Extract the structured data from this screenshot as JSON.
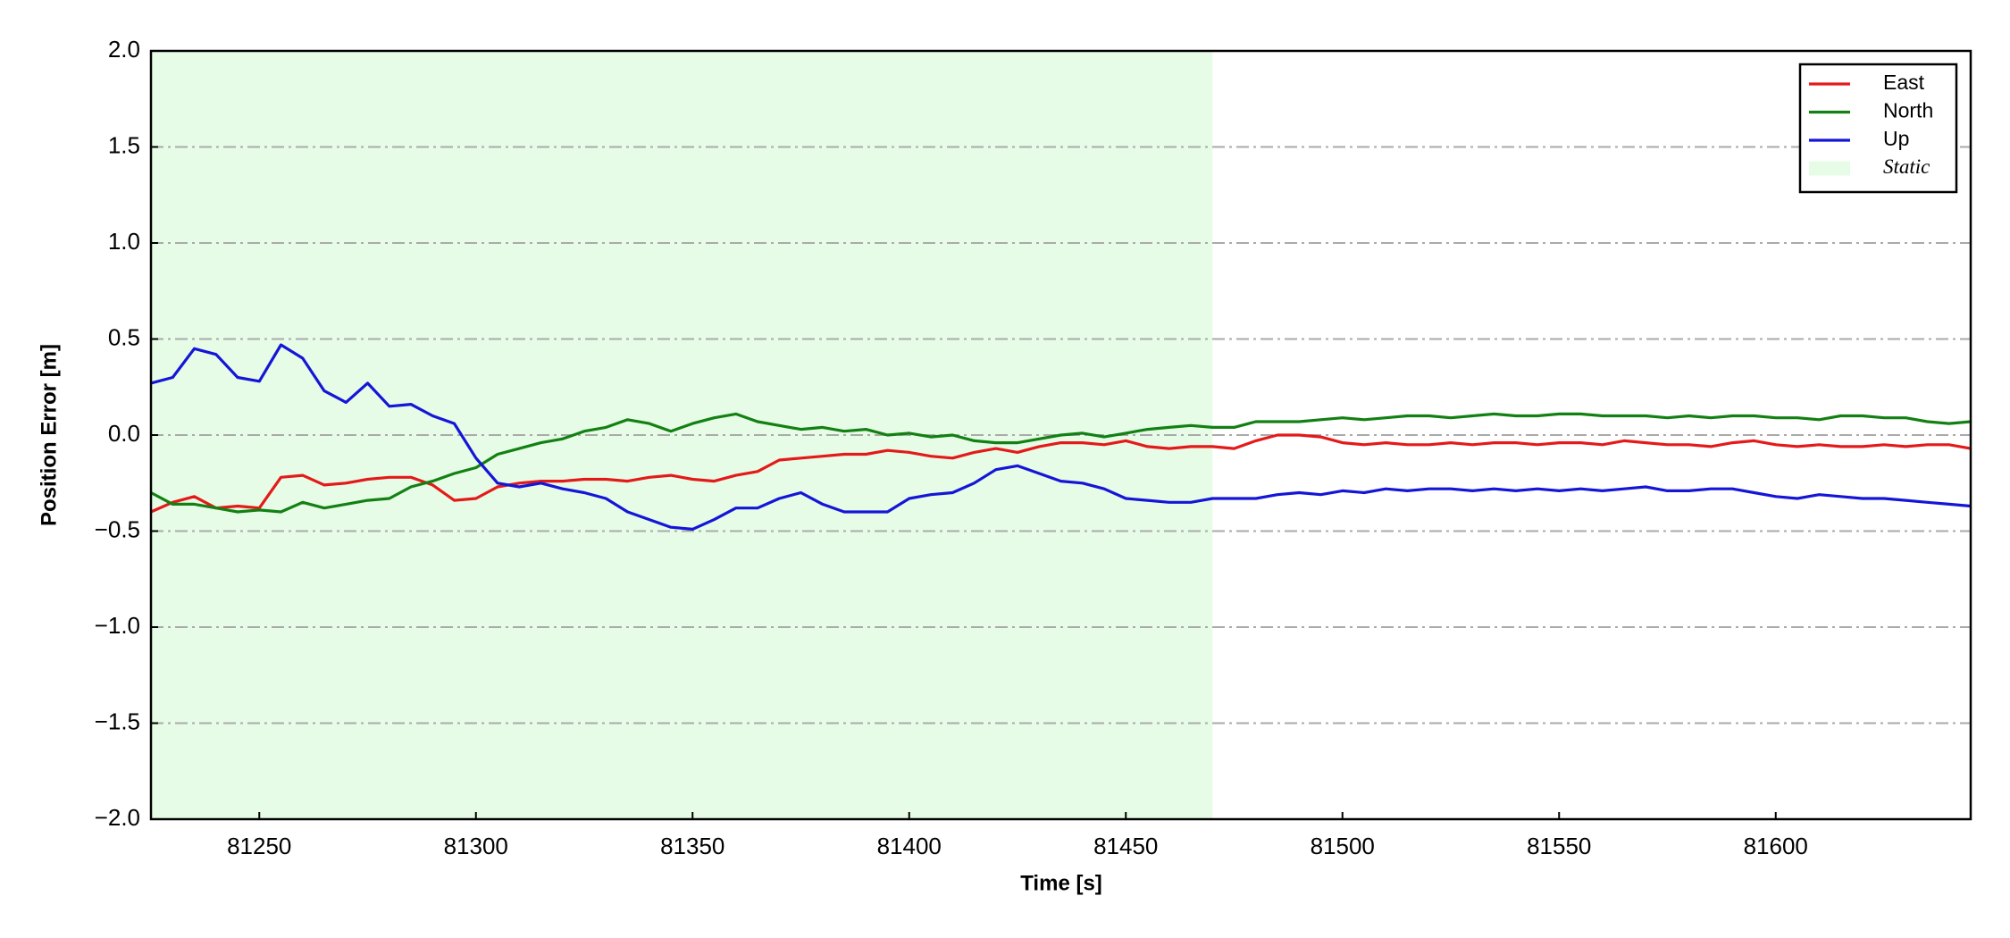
{
  "chart_data": {
    "type": "line",
    "x": [
      81225,
      81230,
      81235,
      81240,
      81245,
      81250,
      81255,
      81260,
      81265,
      81270,
      81275,
      81280,
      81285,
      81290,
      81295,
      81300,
      81305,
      81310,
      81315,
      81320,
      81325,
      81330,
      81335,
      81340,
      81345,
      81350,
      81355,
      81360,
      81365,
      81370,
      81375,
      81380,
      81385,
      81390,
      81395,
      81400,
      81405,
      81410,
      81415,
      81420,
      81425,
      81430,
      81435,
      81440,
      81445,
      81450,
      81455,
      81460,
      81465,
      81470,
      81475,
      81480,
      81485,
      81490,
      81495,
      81500,
      81505,
      81510,
      81515,
      81520,
      81525,
      81530,
      81535,
      81540,
      81545,
      81550,
      81555,
      81560,
      81565,
      81570,
      81575,
      81580,
      81585,
      81590,
      81595,
      81600,
      81605,
      81610,
      81615,
      81620,
      81625,
      81630,
      81635,
      81640,
      81645
    ],
    "series": [
      {
        "name": "East",
        "color": "#e41a1a",
        "values": [
          -0.4,
          -0.35,
          -0.32,
          -0.38,
          -0.37,
          -0.38,
          -0.22,
          -0.21,
          -0.26,
          -0.25,
          -0.23,
          -0.22,
          -0.22,
          -0.26,
          -0.34,
          -0.33,
          -0.27,
          -0.25,
          -0.24,
          -0.24,
          -0.23,
          -0.23,
          -0.24,
          -0.22,
          -0.21,
          -0.23,
          -0.24,
          -0.21,
          -0.19,
          -0.13,
          -0.12,
          -0.11,
          -0.1,
          -0.1,
          -0.08,
          -0.09,
          -0.11,
          -0.12,
          -0.09,
          -0.07,
          -0.09,
          -0.06,
          -0.04,
          -0.04,
          -0.05,
          -0.03,
          -0.06,
          -0.07,
          -0.06,
          -0.06,
          -0.07,
          -0.03,
          0.0,
          0.0,
          -0.01,
          -0.04,
          -0.05,
          -0.04,
          -0.05,
          -0.05,
          -0.04,
          -0.05,
          -0.04,
          -0.04,
          -0.05,
          -0.04,
          -0.04,
          -0.05,
          -0.03,
          -0.04,
          -0.05,
          -0.05,
          -0.06,
          -0.04,
          -0.03,
          -0.05,
          -0.06,
          -0.05,
          -0.06,
          -0.06,
          -0.05,
          -0.06,
          -0.05,
          -0.05,
          -0.07
        ]
      },
      {
        "name": "North",
        "color": "#138013",
        "values": [
          -0.3,
          -0.36,
          -0.36,
          -0.38,
          -0.4,
          -0.39,
          -0.4,
          -0.35,
          -0.38,
          -0.36,
          -0.34,
          -0.33,
          -0.27,
          -0.24,
          -0.2,
          -0.17,
          -0.1,
          -0.07,
          -0.04,
          -0.02,
          0.02,
          0.04,
          0.08,
          0.06,
          0.02,
          0.06,
          0.09,
          0.11,
          0.07,
          0.05,
          0.03,
          0.04,
          0.02,
          0.03,
          0.0,
          0.01,
          -0.01,
          0.0,
          -0.03,
          -0.04,
          -0.04,
          -0.02,
          0.0,
          0.01,
          -0.01,
          0.01,
          0.03,
          0.04,
          0.05,
          0.04,
          0.04,
          0.07,
          0.07,
          0.07,
          0.08,
          0.09,
          0.08,
          0.09,
          0.1,
          0.1,
          0.09,
          0.1,
          0.11,
          0.1,
          0.1,
          0.11,
          0.11,
          0.1,
          0.1,
          0.1,
          0.09,
          0.1,
          0.09,
          0.1,
          0.1,
          0.09,
          0.09,
          0.08,
          0.1,
          0.1,
          0.09,
          0.09,
          0.07,
          0.06,
          0.07
        ]
      },
      {
        "name": "Up",
        "color": "#1515d8",
        "values": [
          0.27,
          0.3,
          0.45,
          0.42,
          0.3,
          0.28,
          0.47,
          0.4,
          0.23,
          0.17,
          0.27,
          0.15,
          0.16,
          0.1,
          0.06,
          -0.12,
          -0.25,
          -0.27,
          -0.25,
          -0.28,
          -0.3,
          -0.33,
          -0.4,
          -0.44,
          -0.48,
          -0.49,
          -0.44,
          -0.38,
          -0.38,
          -0.33,
          -0.3,
          -0.36,
          -0.4,
          -0.4,
          -0.4,
          -0.33,
          -0.31,
          -0.3,
          -0.25,
          -0.18,
          -0.16,
          -0.2,
          -0.24,
          -0.25,
          -0.28,
          -0.33,
          -0.34,
          -0.35,
          -0.35,
          -0.33,
          -0.33,
          -0.33,
          -0.31,
          -0.3,
          -0.31,
          -0.29,
          -0.3,
          -0.28,
          -0.29,
          -0.28,
          -0.28,
          -0.29,
          -0.28,
          -0.29,
          -0.28,
          -0.29,
          -0.28,
          -0.29,
          -0.28,
          -0.27,
          -0.29,
          -0.29,
          -0.28,
          -0.28,
          -0.3,
          -0.32,
          -0.33,
          -0.31,
          -0.32,
          -0.33,
          -0.33,
          -0.34,
          -0.35,
          -0.36,
          -0.37
        ]
      }
    ],
    "shaded_region": {
      "name": "Static",
      "start": 81225,
      "end": 81470,
      "color": "#e6fce6"
    },
    "xlabel": "Time [s]",
    "ylabel": "Position Error [m]",
    "xlim": [
      81225,
      81645
    ],
    "ylim": [
      -2,
      2
    ],
    "xticks": [
      81250,
      81300,
      81350,
      81400,
      81450,
      81500,
      81550,
      81600
    ],
    "yticks": [
      {
        "value": -2,
        "label": "−2.0"
      },
      {
        "value": -1.5,
        "label": "−1.5"
      },
      {
        "value": -1,
        "label": "−1.0"
      },
      {
        "value": -0.5,
        "label": "−0.5"
      },
      {
        "value": 0,
        "label": "0.0"
      },
      0.5,
      {
        "value": 1,
        "label": "1.0"
      },
      1.5,
      {
        "value": 2,
        "label": "2.0"
      }
    ],
    "grid": true,
    "legend": "upper right"
  }
}
